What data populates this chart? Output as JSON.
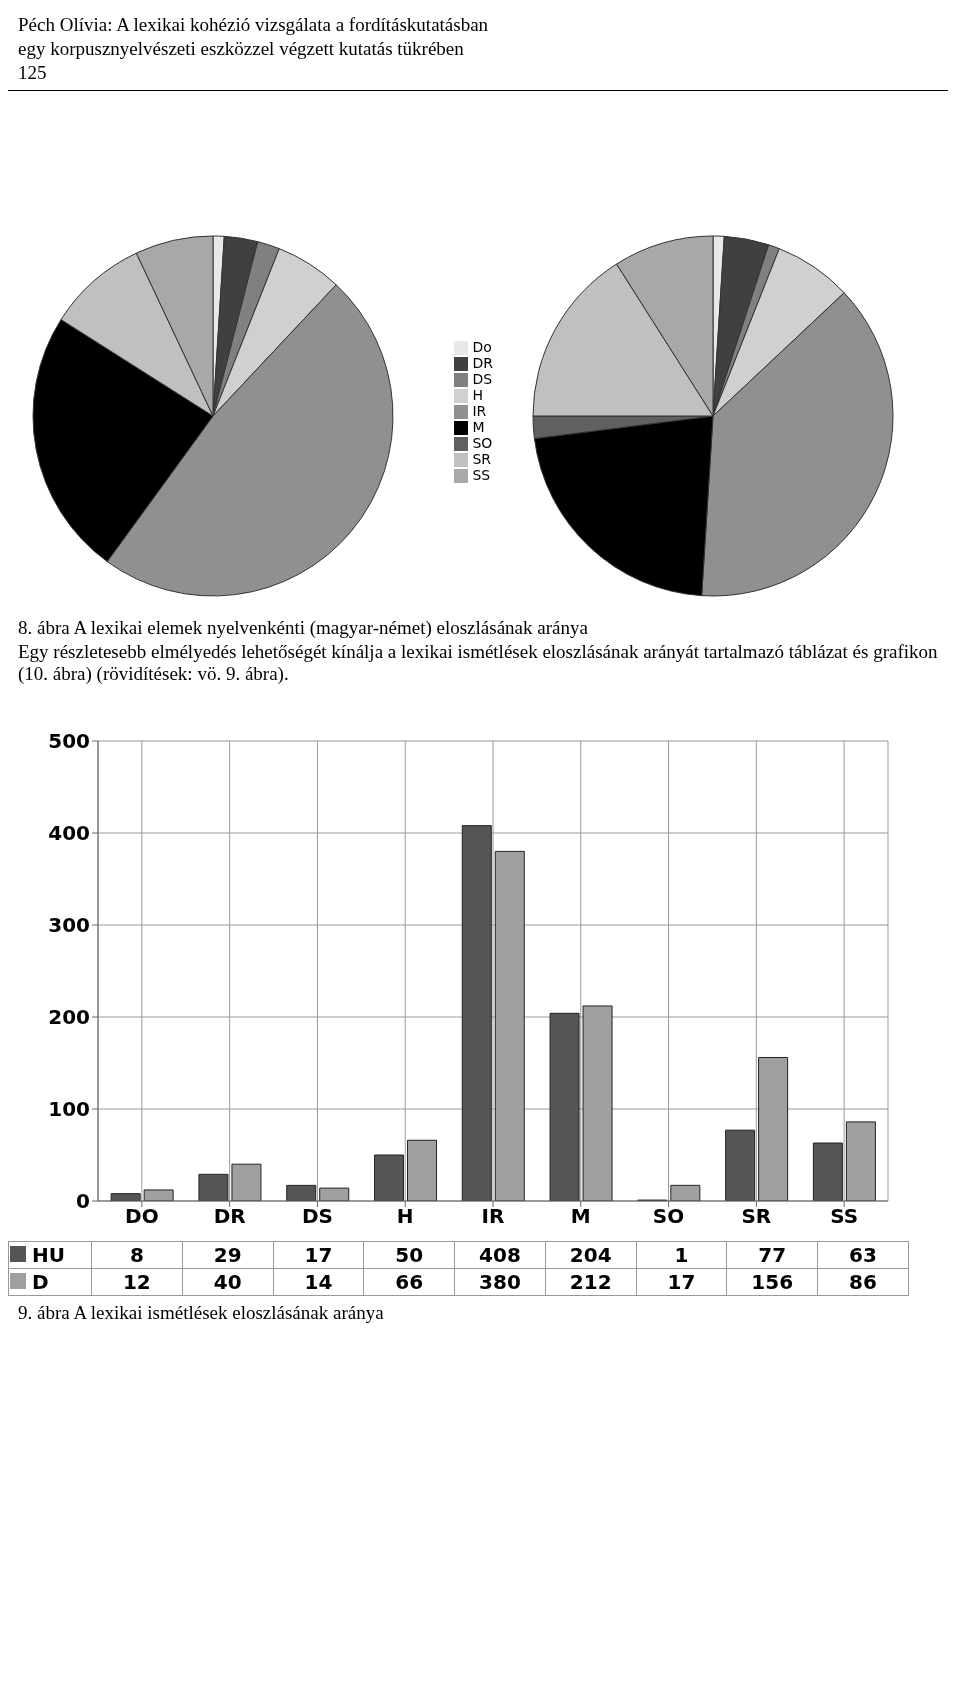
{
  "chart_data": [
    {
      "type": "pie",
      "annotations": [
        "Péch Olívia: A lexikai kohézió vizsgálata a fordításkutatásban",
        "egy korpusznyelvészeti eszközzel végzett kutatás tükrében",
        "125"
      ],
      "categories": [
        "Do",
        "DR",
        "DS",
        "H",
        "IR",
        "M",
        "SO",
        "SR",
        "SS"
      ],
      "values": [
        1,
        3,
        2,
        6,
        48,
        24,
        0,
        9,
        7
      ],
      "colors": [
        "#e8e8e8",
        "#404040",
        "#808080",
        "#d0d0d0",
        "#909090",
        "#000000",
        "#606060",
        "#c0c0c0",
        "#a8a8a8"
      ],
      "legend": "right"
    },
    {
      "type": "pie",
      "annotations": [
        "8. ábra A lexikai elemek nyelvenkénti (magyar-német) eloszlásának aránya",
        "Egy részletesebb elmélyedés lehetőségét kínálja a lexikai ismétlések eloszlásának arányát tartalmazó táblázat és grafikon (10. ábra) (rövidítések: vö. 9. ábra)."
      ],
      "categories": [
        null,
        null,
        null,
        null,
        null,
        null,
        null,
        null,
        null
      ],
      "values": [
        1,
        4,
        1,
        7,
        38,
        22,
        2,
        16,
        9
      ],
      "colors": [
        "#e8e8e8",
        "#404040",
        "#808080",
        "#d0d0d0",
        "#909090",
        "#000000",
        "#606060",
        "#c0c0c0",
        "#a8a8a8"
      ]
    },
    {
      "type": "bar",
      "annotations": [
        "9. ábra A lexikai ismétlések eloszlásának aránya"
      ],
      "categories": [
        "DO",
        "DR",
        "DS",
        "H",
        "IR",
        "M",
        "SO",
        "SR",
        "SS"
      ],
      "series": [
        {
          "name": "HU",
          "color": "#555555",
          "values": [
            8,
            29,
            17,
            50,
            408,
            204,
            1,
            77,
            63
          ]
        },
        {
          "name": "D",
          "color": "#a0a0a0",
          "values": [
            12,
            40,
            14,
            66,
            380,
            212,
            17,
            156,
            86
          ]
        }
      ],
      "ylim": [
        0,
        500
      ],
      "yticks": [
        0,
        100,
        200,
        300,
        400,
        500
      ],
      "grid": true,
      "data_labels": true,
      "legend": "bottom"
    }
  ]
}
